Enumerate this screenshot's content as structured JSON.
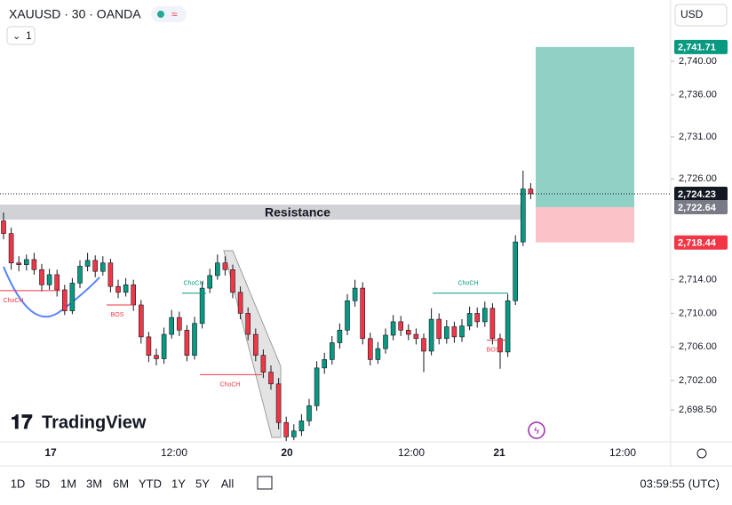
{
  "header": {
    "symbol": "XAUUSD · 30 · OANDA",
    "indicator_count": "1",
    "currency": "USD"
  },
  "logo": "TradingView",
  "chart_data": {
    "type": "candlestick",
    "ylim": [
      2694.7,
      2747.3
    ],
    "yticks": [
      {
        "value": 2740,
        "label": "2,740.00"
      },
      {
        "value": 2736,
        "label": "2,736.00"
      },
      {
        "value": 2731,
        "label": "2,731.00"
      },
      {
        "value": 2726,
        "label": "2,726.00"
      },
      {
        "value": 2714,
        "label": "2,714.00"
      },
      {
        "value": 2710,
        "label": "2,710.00"
      },
      {
        "value": 2706,
        "label": "2,706.00"
      },
      {
        "value": 2702,
        "label": "2,702.00"
      },
      {
        "value": 2698.5,
        "label": "2,698.50"
      }
    ],
    "x_labels": [
      "17",
      "12:00",
      "20",
      "12:00",
      "21",
      "12:00"
    ],
    "up_color": "#089981",
    "down_color": "#f23645",
    "current_price": {
      "value": 2724.23,
      "label": "2,724.23"
    },
    "position": {
      "target": {
        "value": 2741.71,
        "label": "2,741.71"
      },
      "entry": {
        "value": 2722.64,
        "label": "2,722.64"
      },
      "stop": {
        "value": 2718.44,
        "label": "2,718.44"
      }
    },
    "zone": {
      "label": "Resistance",
      "top": 2722.95,
      "bottom": 2721.15
    },
    "annotations": [
      {
        "label": "ChoCH",
        "level": 2712.7,
        "color": "#f23645"
      },
      {
        "label": "BOS",
        "level": 2711.0,
        "color": "#f23645"
      },
      {
        "label": "ChoCH",
        "level": 2712.4,
        "color": "#089981"
      },
      {
        "label": "ChoCH",
        "level": 2702.7,
        "color": "#f23645"
      },
      {
        "label": "ChoCH",
        "level": 2712.4,
        "color": "#089981"
      },
      {
        "label": "BOS",
        "level": 2706.8,
        "color": "#f23645"
      }
    ],
    "candles": [
      [
        2721.0,
        2722.0,
        2718.8,
        2719.5
      ],
      [
        2719.5,
        2720.2,
        2715.2,
        2716.0
      ],
      [
        2716.0,
        2716.8,
        2715.0,
        2715.8
      ],
      [
        2715.8,
        2717.0,
        2715.1,
        2716.4
      ],
      [
        2716.4,
        2717.2,
        2714.6,
        2715.2
      ],
      [
        2715.2,
        2715.9,
        2712.6,
        2713.4
      ],
      [
        2713.4,
        2715.3,
        2712.8,
        2714.6
      ],
      [
        2714.6,
        2715.2,
        2712.0,
        2712.8
      ],
      [
        2712.8,
        2713.4,
        2709.8,
        2710.3
      ],
      [
        2710.3,
        2714.2,
        2709.9,
        2713.6
      ],
      [
        2713.6,
        2716.3,
        2713.0,
        2715.6
      ],
      [
        2715.6,
        2717.2,
        2715.0,
        2716.3
      ],
      [
        2716.3,
        2716.9,
        2714.3,
        2715.0
      ],
      [
        2715.0,
        2716.8,
        2714.5,
        2716.0
      ],
      [
        2716.0,
        2716.5,
        2712.5,
        2713.2
      ],
      [
        2713.2,
        2714.0,
        2711.8,
        2712.5
      ],
      [
        2712.5,
        2714.2,
        2712.0,
        2713.4
      ],
      [
        2713.4,
        2714.0,
        2710.3,
        2711.0
      ],
      [
        2711.0,
        2711.6,
        2706.4,
        2707.2
      ],
      [
        2707.2,
        2707.8,
        2704.2,
        2705.0
      ],
      [
        2705.0,
        2705.8,
        2703.8,
        2704.6
      ],
      [
        2704.6,
        2708.3,
        2704.0,
        2707.5
      ],
      [
        2707.5,
        2710.4,
        2707.0,
        2709.5
      ],
      [
        2709.5,
        2710.2,
        2707.3,
        2708.0
      ],
      [
        2708.0,
        2708.6,
        2704.3,
        2705.0
      ],
      [
        2705.0,
        2709.6,
        2704.5,
        2708.8
      ],
      [
        2708.8,
        2713.8,
        2708.2,
        2713.0
      ],
      [
        2713.0,
        2715.3,
        2712.4,
        2714.5
      ],
      [
        2714.5,
        2717.0,
        2714.0,
        2716.0
      ],
      [
        2716.0,
        2716.8,
        2714.5,
        2715.2
      ],
      [
        2715.2,
        2715.8,
        2711.8,
        2712.5
      ],
      [
        2712.5,
        2713.2,
        2709.3,
        2710.0
      ],
      [
        2710.0,
        2710.7,
        2706.8,
        2707.5
      ],
      [
        2707.5,
        2708.2,
        2704.3,
        2705.0
      ],
      [
        2705.0,
        2705.7,
        2702.3,
        2703.0
      ],
      [
        2703.0,
        2703.8,
        2700.9,
        2701.6
      ],
      [
        2701.6,
        2702.3,
        2696.2,
        2697.0
      ],
      [
        2697.0,
        2697.7,
        2694.8,
        2695.3
      ],
      [
        2695.3,
        2696.8,
        2694.9,
        2696.0
      ],
      [
        2696.0,
        2698.0,
        2695.4,
        2697.2
      ],
      [
        2697.2,
        2699.8,
        2696.6,
        2699.0
      ],
      [
        2699.0,
        2704.3,
        2698.4,
        2703.5
      ],
      [
        2703.5,
        2705.3,
        2702.8,
        2704.5
      ],
      [
        2704.5,
        2707.3,
        2703.9,
        2706.5
      ],
      [
        2706.5,
        2708.8,
        2705.8,
        2708.0
      ],
      [
        2708.0,
        2712.3,
        2707.4,
        2711.5
      ],
      [
        2711.5,
        2714.0,
        2710.8,
        2713.0
      ],
      [
        2713.0,
        2713.7,
        2706.3,
        2707.0
      ],
      [
        2707.0,
        2707.7,
        2703.8,
        2704.5
      ],
      [
        2704.5,
        2706.6,
        2704.0,
        2705.8
      ],
      [
        2705.8,
        2708.2,
        2705.2,
        2707.4
      ],
      [
        2707.4,
        2709.8,
        2706.8,
        2709.0
      ],
      [
        2709.0,
        2709.7,
        2707.3,
        2708.0
      ],
      [
        2708.0,
        2708.7,
        2706.8,
        2707.5
      ],
      [
        2707.5,
        2708.2,
        2706.3,
        2707.0
      ],
      [
        2707.0,
        2707.6,
        2703.0,
        2705.5
      ],
      [
        2705.5,
        2710.6,
        2705.0,
        2709.3
      ],
      [
        2709.3,
        2710.0,
        2706.3,
        2707.0
      ],
      [
        2707.0,
        2709.2,
        2706.4,
        2708.4
      ],
      [
        2708.4,
        2709.0,
        2706.5,
        2707.2
      ],
      [
        2707.2,
        2709.3,
        2706.6,
        2708.5
      ],
      [
        2708.5,
        2710.8,
        2708.0,
        2710.0
      ],
      [
        2710.0,
        2710.7,
        2708.3,
        2709.0
      ],
      [
        2709.0,
        2711.4,
        2708.4,
        2710.6
      ],
      [
        2710.6,
        2711.2,
        2706.3,
        2707.0
      ],
      [
        2707.0,
        2707.6,
        2703.4,
        2705.4
      ],
      [
        2705.4,
        2712.3,
        2704.8,
        2711.5
      ],
      [
        2711.5,
        2719.3,
        2711.0,
        2718.5
      ],
      [
        2718.5,
        2727.0,
        2718.0,
        2724.8
      ],
      [
        2724.8,
        2725.5,
        2723.6,
        2724.23
      ]
    ]
  },
  "footer": {
    "ranges": [
      "1D",
      "5D",
      "1M",
      "3M",
      "6M",
      "YTD",
      "1Y",
      "5Y",
      "All"
    ],
    "clock": "03:59:55 (UTC)"
  }
}
